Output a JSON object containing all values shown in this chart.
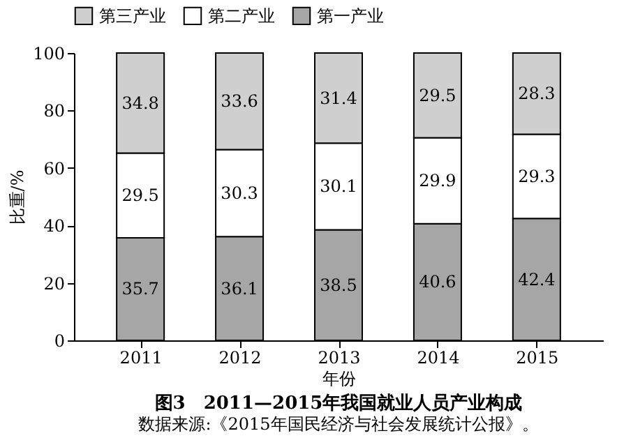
{
  "chart_data": {
    "type": "bar",
    "stacked": true,
    "title": "图3　2011—2015年我国就业人员产业构成",
    "annotations": [
      "数据来源:《2015年国民经济与社会发展统计公报》。"
    ],
    "xlabel": "年份",
    "ylabel": "比重/%",
    "categories": [
      "2011",
      "2012",
      "2013",
      "2014",
      "2015"
    ],
    "series": [
      {
        "name": "第一产业",
        "color": "#a6a6a6",
        "values": [
          35.7,
          36.1,
          38.5,
          40.6,
          42.4
        ]
      },
      {
        "name": "第二产业",
        "color": "#ffffff",
        "values": [
          29.5,
          30.3,
          30.1,
          29.9,
          29.3
        ]
      },
      {
        "name": "第三产业",
        "color": "#cfcfcf",
        "values": [
          34.8,
          33.6,
          31.4,
          29.5,
          28.3
        ]
      }
    ],
    "ylim": [
      0,
      100
    ],
    "yticks": [
      0,
      20,
      40,
      60,
      80,
      100
    ],
    "grid": false,
    "legend": "top",
    "data_labels": true
  }
}
